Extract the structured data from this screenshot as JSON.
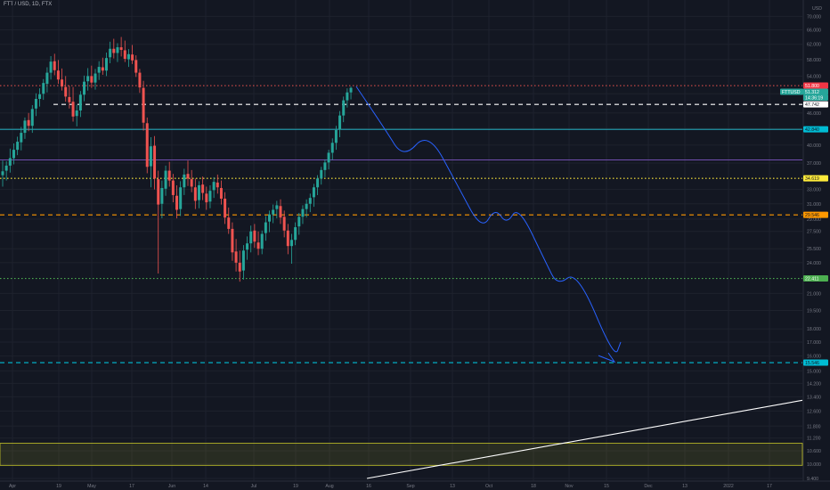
{
  "symbol": {
    "title": "FTT / USD, 1D, FTX"
  },
  "colors": {
    "background": "#131722",
    "grid": "#1e222d",
    "bull": "#26a69a",
    "bear": "#ef5350",
    "axis_text": "#787b86",
    "drawing_blue": "#2962ff"
  },
  "chart_data": {
    "type": "candlestick",
    "y_scale": "log",
    "ylim": [
      9.4,
      74.0
    ],
    "currency_label": "USD",
    "y_ticks": [
      "74.000",
      "70.000",
      "66.000",
      "62.000",
      "58.000",
      "54.000",
      "50.000",
      "46.000",
      "43.000",
      "40.000",
      "37.000",
      "33.000",
      "31.000",
      "29.000",
      "27.500",
      "25.500",
      "24.000",
      "21.000",
      "19.500",
      "18.000",
      "17.000",
      "16.000",
      "15.000",
      "14.200",
      "13.400",
      "12.600",
      "11.800",
      "11.200",
      "10.600",
      "10.000",
      "9.400"
    ],
    "x_ticks": [
      "Apr",
      "19",
      "May",
      "17",
      "Jun",
      "14",
      "Jul",
      "19",
      "Aug",
      "16",
      "Sep",
      "13",
      "Oct",
      "18",
      "Nov",
      "15",
      "Dec",
      "13",
      "2022",
      "17"
    ],
    "candles": [
      {
        "o": 35.1,
        "h": 37.4,
        "l": 33.4,
        "c": 35.7
      },
      {
        "o": 35.8,
        "h": 37.3,
        "l": 34.3,
        "c": 36.6
      },
      {
        "o": 36.6,
        "h": 39.4,
        "l": 35.5,
        "c": 37.8
      },
      {
        "o": 37.8,
        "h": 40.3,
        "l": 36.8,
        "c": 39.2
      },
      {
        "o": 39.2,
        "h": 41.5,
        "l": 38.3,
        "c": 40.6
      },
      {
        "o": 40.5,
        "h": 43.3,
        "l": 39.1,
        "c": 42.2
      },
      {
        "o": 42.2,
        "h": 45.1,
        "l": 41.1,
        "c": 44.5
      },
      {
        "o": 44.6,
        "h": 46.0,
        "l": 42.5,
        "c": 43.5
      },
      {
        "o": 43.5,
        "h": 47.6,
        "l": 42.2,
        "c": 46.8
      },
      {
        "o": 46.9,
        "h": 50.1,
        "l": 45.4,
        "c": 48.9
      },
      {
        "o": 48.9,
        "h": 51.2,
        "l": 47.3,
        "c": 49.9
      },
      {
        "o": 50.0,
        "h": 53.3,
        "l": 48.7,
        "c": 52.4
      },
      {
        "o": 52.2,
        "h": 56.1,
        "l": 50.3,
        "c": 54.8
      },
      {
        "o": 54.8,
        "h": 58.9,
        "l": 53.2,
        "c": 57.5
      },
      {
        "o": 57.6,
        "h": 59.5,
        "l": 54.2,
        "c": 55.4
      },
      {
        "o": 55.3,
        "h": 57.9,
        "l": 52.2,
        "c": 53.2
      },
      {
        "o": 53.2,
        "h": 55.8,
        "l": 50.7,
        "c": 51.6
      },
      {
        "o": 51.5,
        "h": 54.0,
        "l": 48.3,
        "c": 49.4
      },
      {
        "o": 49.3,
        "h": 51.8,
        "l": 46.9,
        "c": 48.2
      },
      {
        "o": 48.3,
        "h": 51.5,
        "l": 44.3,
        "c": 45.3
      },
      {
        "o": 45.4,
        "h": 47.7,
        "l": 43.4,
        "c": 46.5
      },
      {
        "o": 46.5,
        "h": 50.6,
        "l": 45.2,
        "c": 49.8
      },
      {
        "o": 49.8,
        "h": 54.1,
        "l": 48.4,
        "c": 52.7
      },
      {
        "o": 52.8,
        "h": 55.9,
        "l": 50.7,
        "c": 54.0
      },
      {
        "o": 54.0,
        "h": 56.5,
        "l": 51.3,
        "c": 52.5
      },
      {
        "o": 52.5,
        "h": 55.7,
        "l": 50.9,
        "c": 54.6
      },
      {
        "o": 54.8,
        "h": 57.6,
        "l": 53.1,
        "c": 56.2
      },
      {
        "o": 56.1,
        "h": 58.5,
        "l": 54.3,
        "c": 55.3
      },
      {
        "o": 55.3,
        "h": 59.8,
        "l": 54.0,
        "c": 58.4
      },
      {
        "o": 58.6,
        "h": 62.7,
        "l": 57.1,
        "c": 60.8
      },
      {
        "o": 60.8,
        "h": 63.5,
        "l": 58.3,
        "c": 59.7
      },
      {
        "o": 59.7,
        "h": 62.3,
        "l": 57.4,
        "c": 61.2
      },
      {
        "o": 61.2,
        "h": 64.0,
        "l": 58.8,
        "c": 60.5
      },
      {
        "o": 60.4,
        "h": 63.0,
        "l": 57.4,
        "c": 58.2
      },
      {
        "o": 58.1,
        "h": 60.7,
        "l": 56.2,
        "c": 59.4
      },
      {
        "o": 59.3,
        "h": 61.8,
        "l": 56.9,
        "c": 57.8
      },
      {
        "o": 57.9,
        "h": 59.1,
        "l": 53.8,
        "c": 54.8
      },
      {
        "o": 54.8,
        "h": 55.7,
        "l": 50.2,
        "c": 51.4
      },
      {
        "o": 51.3,
        "h": 52.9,
        "l": 42.6,
        "c": 44.1
      },
      {
        "o": 44.0,
        "h": 45.1,
        "l": 35.4,
        "c": 36.4
      },
      {
        "o": 36.5,
        "h": 41.4,
        "l": 33.3,
        "c": 39.8
      },
      {
        "o": 39.9,
        "h": 41.6,
        "l": 33.0,
        "c": 34.6
      },
      {
        "o": 34.5,
        "h": 35.8,
        "l": 22.9,
        "c": 30.9
      },
      {
        "o": 31.0,
        "h": 34.3,
        "l": 29.1,
        "c": 33.2
      },
      {
        "o": 33.1,
        "h": 36.6,
        "l": 32.1,
        "c": 35.8
      },
      {
        "o": 35.8,
        "h": 37.2,
        "l": 33.4,
        "c": 34.3
      },
      {
        "o": 34.3,
        "h": 35.3,
        "l": 31.2,
        "c": 32.2
      },
      {
        "o": 32.1,
        "h": 33.6,
        "l": 29.1,
        "c": 30.2
      },
      {
        "o": 30.3,
        "h": 34.2,
        "l": 29.4,
        "c": 33.3
      },
      {
        "o": 33.3,
        "h": 36.1,
        "l": 32.2,
        "c": 35.2
      },
      {
        "o": 35.3,
        "h": 37.4,
        "l": 33.5,
        "c": 34.6
      },
      {
        "o": 34.5,
        "h": 35.9,
        "l": 32.6,
        "c": 33.4
      },
      {
        "o": 33.3,
        "h": 34.6,
        "l": 30.3,
        "c": 31.4
      },
      {
        "o": 31.5,
        "h": 34.2,
        "l": 30.4,
        "c": 33.6
      },
      {
        "o": 33.7,
        "h": 34.9,
        "l": 31.5,
        "c": 32.5
      },
      {
        "o": 32.4,
        "h": 33.4,
        "l": 30.2,
        "c": 31.2
      },
      {
        "o": 31.3,
        "h": 33.6,
        "l": 30.4,
        "c": 32.8
      },
      {
        "o": 32.9,
        "h": 34.8,
        "l": 31.8,
        "c": 34.1
      },
      {
        "o": 34.0,
        "h": 35.2,
        "l": 32.4,
        "c": 33.3
      },
      {
        "o": 33.2,
        "h": 34.3,
        "l": 30.9,
        "c": 31.7
      },
      {
        "o": 31.7,
        "h": 32.6,
        "l": 28.4,
        "c": 29.2
      },
      {
        "o": 29.2,
        "h": 30.5,
        "l": 27.2,
        "c": 27.8
      },
      {
        "o": 27.8,
        "h": 28.6,
        "l": 24.2,
        "c": 25.1
      },
      {
        "o": 25.2,
        "h": 26.6,
        "l": 23.1,
        "c": 24.0
      },
      {
        "o": 24.0,
        "h": 25.3,
        "l": 22.1,
        "c": 23.1
      },
      {
        "o": 23.2,
        "h": 25.9,
        "l": 22.3,
        "c": 25.3
      },
      {
        "o": 25.4,
        "h": 26.9,
        "l": 24.3,
        "c": 26.1
      },
      {
        "o": 26.1,
        "h": 28.2,
        "l": 25.1,
        "c": 27.5
      },
      {
        "o": 27.6,
        "h": 28.4,
        "l": 25.6,
        "c": 26.3
      },
      {
        "o": 26.2,
        "h": 27.5,
        "l": 24.8,
        "c": 25.5
      },
      {
        "o": 25.5,
        "h": 27.6,
        "l": 24.9,
        "c": 27.2
      },
      {
        "o": 27.3,
        "h": 29.4,
        "l": 26.4,
        "c": 28.6
      },
      {
        "o": 28.7,
        "h": 30.1,
        "l": 27.4,
        "c": 29.6
      },
      {
        "o": 29.6,
        "h": 30.9,
        "l": 28.5,
        "c": 30.2
      },
      {
        "o": 30.3,
        "h": 31.4,
        "l": 29.1,
        "c": 30.8
      },
      {
        "o": 30.7,
        "h": 31.6,
        "l": 28.4,
        "c": 29.2
      },
      {
        "o": 29.3,
        "h": 30.1,
        "l": 26.8,
        "c": 27.6
      },
      {
        "o": 27.6,
        "h": 28.4,
        "l": 24.9,
        "c": 25.8
      },
      {
        "o": 25.8,
        "h": 27.2,
        "l": 23.9,
        "c": 26.5
      },
      {
        "o": 26.5,
        "h": 28.6,
        "l": 25.9,
        "c": 28.0
      },
      {
        "o": 28.1,
        "h": 29.8,
        "l": 27.1,
        "c": 29.3
      },
      {
        "o": 29.3,
        "h": 30.8,
        "l": 28.4,
        "c": 30.3
      },
      {
        "o": 30.3,
        "h": 31.6,
        "l": 29.2,
        "c": 31.0
      },
      {
        "o": 31.0,
        "h": 32.4,
        "l": 29.9,
        "c": 31.8
      },
      {
        "o": 31.9,
        "h": 33.8,
        "l": 30.6,
        "c": 33.3
      },
      {
        "o": 33.3,
        "h": 35.1,
        "l": 32.2,
        "c": 34.6
      },
      {
        "o": 34.6,
        "h": 36.4,
        "l": 33.7,
        "c": 35.9
      },
      {
        "o": 35.9,
        "h": 37.6,
        "l": 34.8,
        "c": 37.1
      },
      {
        "o": 37.1,
        "h": 39.2,
        "l": 36.0,
        "c": 38.7
      },
      {
        "o": 38.7,
        "h": 41.2,
        "l": 37.5,
        "c": 40.4
      },
      {
        "o": 40.4,
        "h": 43.5,
        "l": 39.2,
        "c": 42.7
      },
      {
        "o": 42.8,
        "h": 46.4,
        "l": 41.4,
        "c": 45.5
      },
      {
        "o": 45.5,
        "h": 49.4,
        "l": 44.2,
        "c": 48.6
      },
      {
        "o": 48.6,
        "h": 51.2,
        "l": 47.1,
        "c": 50.3
      },
      {
        "o": 50.3,
        "h": 51.6,
        "l": 48.8,
        "c": 51.3
      }
    ],
    "horizontal_levels": [
      {
        "value": 51.8,
        "style": "dotted",
        "color": "#ef5350"
      },
      {
        "value": 47.742,
        "style": "dashed",
        "color": "#ffffff"
      },
      {
        "value": 42.84,
        "style": "solid",
        "color": "#26c6da"
      },
      {
        "value": 37.5,
        "style": "solid",
        "color": "#7e57c2"
      },
      {
        "value": 34.619,
        "style": "dotted",
        "color": "#ffeb3b"
      },
      {
        "value": 29.546,
        "style": "dashed",
        "color": "#ff9800"
      },
      {
        "value": 22.411,
        "style": "dotted",
        "color": "#4caf50"
      },
      {
        "value": 15.546,
        "style": "dashed",
        "color": "#00bcd4"
      }
    ],
    "price_labels": [
      {
        "text": "51.800",
        "bg": "#f23645",
        "fg": "#ffffff"
      },
      {
        "text": "FTTUSD",
        "bg": "#26a69a",
        "fg": "#ffffff"
      },
      {
        "text": "51.312",
        "bg": "#26a69a",
        "fg": "#ffffff"
      },
      {
        "text": "14:36:19",
        "bg": "#26a69a",
        "fg": "#ffffff"
      },
      {
        "text": "47.742",
        "bg": "#ffffff",
        "fg": "#131722"
      },
      {
        "text": "42.840",
        "bg": "#00bcd4",
        "fg": "#131722"
      },
      {
        "text": "34.619",
        "bg": "#ffeb3b",
        "fg": "#131722"
      },
      {
        "text": "29.546",
        "bg": "#ff9800",
        "fg": "#131722"
      },
      {
        "text": "22.411",
        "bg": "#4caf50",
        "fg": "#ffffff"
      },
      {
        "text": "15.546",
        "bg": "#00bcd4",
        "fg": "#131722"
      }
    ],
    "support_zone": {
      "top": 10.95,
      "bottom": 9.95,
      "color": "#c6c629"
    },
    "trendline": {
      "from": {
        "x": "mid-Aug",
        "y": 9.4
      },
      "to": {
        "x": "Jan 2022",
        "y": 13.2
      },
      "color": "#ffffff"
    },
    "projected_path": [
      51.6,
      43.0,
      37.7,
      42.5,
      33.5,
      27.6,
      30.5,
      28.3,
      30.8,
      24.0,
      21.7,
      23.2,
      15.8,
      17.0
    ],
    "grid": true
  }
}
